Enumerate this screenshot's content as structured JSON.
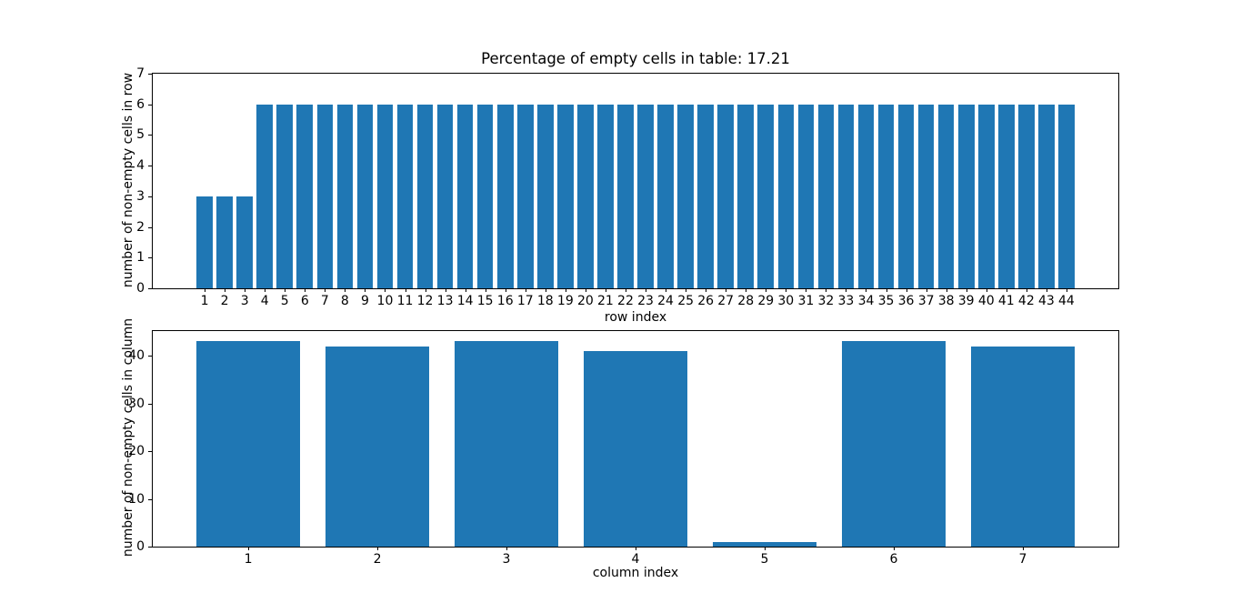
{
  "figure": {
    "background": "#ffffff",
    "text_color": "#000000"
  },
  "chart_data": [
    {
      "type": "bar",
      "title": "Percentage of empty cells in table: 17.21",
      "xlabel": "row index",
      "ylabel": "number of non-empty cells in row",
      "categories": [
        1,
        2,
        3,
        4,
        5,
        6,
        7,
        8,
        9,
        10,
        11,
        12,
        13,
        14,
        15,
        16,
        17,
        18,
        19,
        20,
        21,
        22,
        23,
        24,
        25,
        26,
        27,
        28,
        29,
        30,
        31,
        32,
        33,
        34,
        35,
        36,
        37,
        38,
        39,
        40,
        41,
        42,
        43,
        44
      ],
      "values": [
        3,
        3,
        3,
        6,
        6,
        6,
        6,
        6,
        6,
        6,
        6,
        6,
        6,
        6,
        6,
        6,
        6,
        6,
        6,
        6,
        6,
        6,
        6,
        6,
        6,
        6,
        6,
        6,
        6,
        6,
        6,
        6,
        6,
        6,
        6,
        6,
        6,
        6,
        6,
        6,
        6,
        6,
        6,
        6
      ],
      "bar_color": "#1f77b4",
      "bar_width": 0.8,
      "xlim": [
        -1.59,
        46.59
      ],
      "ylim": [
        0,
        7
      ],
      "yticks": [
        0,
        1,
        2,
        3,
        4,
        5,
        6,
        7
      ],
      "grid": false,
      "legend": null
    },
    {
      "type": "bar",
      "title": "",
      "xlabel": "column index",
      "ylabel": "number of non-empty cells in column",
      "categories": [
        1,
        2,
        3,
        4,
        5,
        6,
        7
      ],
      "values": [
        43,
        42,
        43,
        41,
        1,
        43,
        42
      ],
      "bar_color": "#1f77b4",
      "bar_width": 0.8,
      "xlim": [
        0.26,
        7.74
      ],
      "ylim": [
        0,
        45.15
      ],
      "yticks": [
        0,
        10,
        20,
        30,
        40
      ],
      "grid": false,
      "legend": null
    }
  ]
}
